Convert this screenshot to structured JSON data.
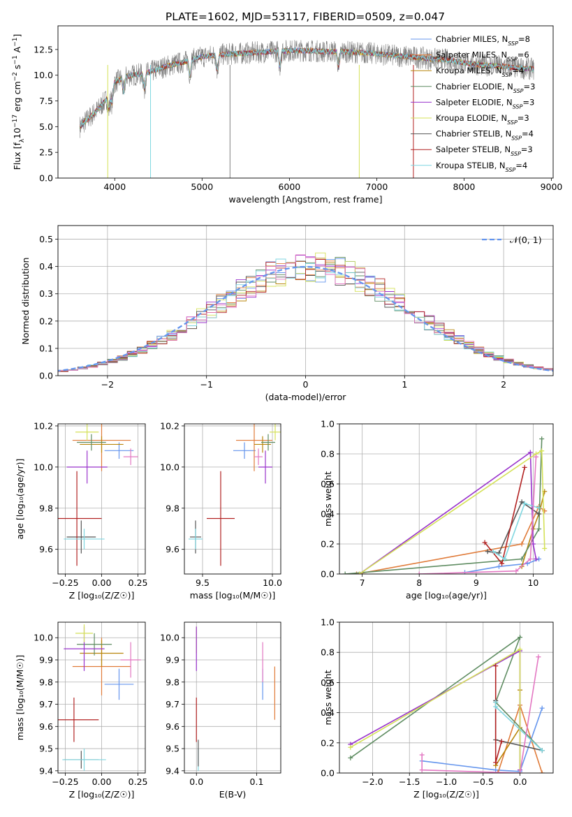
{
  "figure_title": "PLATE=1602, MJD=53117, FIBERID=0509, z=0.047",
  "colors": {
    "Chabrier MILES": "#6495ed",
    "Salpeter MILES": "#e07b39",
    "Kroupa MILES": "#b8860b",
    "Chabrier ELODIE": "#5e8c61",
    "Salpeter ELODIE": "#9932cc",
    "Kroupa ELODIE": "#d4e157",
    "Chabrier STELIB": "#555555",
    "Salpeter STELIB": "#b22222",
    "Kroupa STELIB": "#7fd6e0",
    "pink": "#e377c2",
    "data": "#808080"
  },
  "chart_data": [
    {
      "id": "spectrum",
      "type": "line",
      "xlabel": "wavelength [Angstrom, rest frame]",
      "ylabel": "Flux [f",
      "ylabel_parts": [
        "Flux [f",
        "λ",
        "10",
        "−17",
        " erg cm",
        "−2",
        " s",
        "−1",
        " A",
        "−1",
        "]"
      ],
      "xlim": [
        3350,
        9020
      ],
      "ylim": [
        0,
        14.8
      ],
      "xticks": [
        4000,
        5000,
        6000,
        7000,
        8000,
        9000
      ],
      "yticks": [
        0.0,
        2.5,
        5.0,
        7.5,
        10.0,
        12.5
      ],
      "x_range_data": [
        3600,
        8800
      ],
      "approx_continuum": {
        "x": [
          3600,
          3700,
          3800,
          3900,
          4000,
          4100,
          4200,
          4300,
          4400,
          4600,
          4800,
          5000,
          5200,
          5400,
          5600,
          5800,
          6000,
          6200,
          6400,
          6600,
          6800,
          7000,
          7200,
          7400,
          7600,
          7800,
          8000,
          8200,
          8400,
          8600,
          8800
        ],
        "y": [
          5.0,
          5.8,
          6.6,
          7.6,
          9.3,
          9.8,
          10.0,
          10.1,
          10.3,
          10.9,
          11.3,
          11.8,
          12.0,
          12.1,
          12.2,
          12.3,
          12.4,
          12.4,
          12.3,
          12.3,
          12.2,
          12.1,
          11.9,
          11.8,
          11.6,
          11.5,
          11.2,
          11.0,
          10.9,
          10.7,
          10.6
        ]
      },
      "legend": [
        {
          "name": "Chabrier MILES",
          "nssp": "8"
        },
        {
          "name": "Salpeter MILES",
          "nssp": "6"
        },
        {
          "name": "Kroupa MILES",
          "nssp": "4"
        },
        {
          "name": "Chabrier ELODIE",
          "nssp": "3"
        },
        {
          "name": "Salpeter ELODIE",
          "nssp": "3"
        },
        {
          "name": "Kroupa ELODIE",
          "nssp": "3"
        },
        {
          "name": "Chabrier STELIB",
          "nssp": "4"
        },
        {
          "name": "Salpeter STELIB",
          "nssp": "3"
        },
        {
          "name": "Kroupa STELIB",
          "nssp": "4"
        }
      ],
      "legend_placement": "upper right"
    },
    {
      "id": "residual_hist",
      "type": "histogram",
      "xlabel": "(data-model)/error",
      "ylabel": "Normed distribution",
      "xlim": [
        -2.5,
        2.5
      ],
      "ylim": [
        0,
        0.55
      ],
      "xticks": [
        -2,
        -1,
        0,
        1,
        2
      ],
      "yticks": [
        0.0,
        0.1,
        0.2,
        0.3,
        0.4,
        0.5
      ],
      "grid": true,
      "reference_curve": {
        "name": "N(0, 1)",
        "label": "𝒩(0, 1)",
        "style": "dashed"
      },
      "bin_width": 0.1,
      "legend_placement": "upper right"
    },
    {
      "id": "z_vs_age",
      "type": "errorbar",
      "xlabel": "Z [log₁₀(Z/Z☉)]",
      "ylabel": "age  [log₁₀(age/yr)]",
      "xlim": [
        -0.3,
        0.3
      ],
      "ylim": [
        9.48,
        10.21
      ],
      "xticks": [
        -0.25,
        0.0,
        0.25
      ],
      "yticks": [
        9.6,
        9.8,
        10.0,
        10.2
      ],
      "grid": true,
      "points": [
        {
          "series": "Chabrier MILES",
          "x": 0.12,
          "xerr": 0.1,
          "y": 10.08,
          "yerr": 0.04
        },
        {
          "series": "Salpeter MILES",
          "x": 0.0,
          "xerr": 0.2,
          "y": 10.13,
          "yerr": 0.15
        },
        {
          "series": "Kroupa MILES",
          "x": 0.0,
          "xerr": 0.15,
          "y": 10.11,
          "yerr": 0.04
        },
        {
          "series": "Chabrier ELODIE",
          "x": -0.07,
          "xerr": 0.1,
          "y": 10.12,
          "yerr": 0.04
        },
        {
          "series": "Salpeter ELODIE",
          "x": -0.1,
          "xerr": 0.14,
          "y": 10.0,
          "yerr": 0.08
        },
        {
          "series": "Kroupa ELODIE",
          "x": -0.1,
          "xerr": 0.08,
          "y": 10.17,
          "yerr": 0.04
        },
        {
          "series": "Chabrier STELIB",
          "x": -0.14,
          "xerr": 0.1,
          "y": 9.66,
          "yerr": 0.08
        },
        {
          "series": "Salpeter STELIB",
          "x": -0.17,
          "xerr": 0.17,
          "y": 9.75,
          "yerr": 0.23
        },
        {
          "series": "Kroupa STELIB",
          "x": -0.12,
          "xerr": 0.14,
          "y": 9.65,
          "yerr": 0.05
        },
        {
          "series": "pink",
          "x": 0.2,
          "xerr": 0.05,
          "y": 10.05,
          "yerr": 0.04
        }
      ]
    },
    {
      "id": "mass_vs_age",
      "type": "errorbar",
      "xlabel": "mass [log₁₀(M/M☉)]",
      "ylabel": "",
      "xlim": [
        9.37,
        10.06
      ],
      "ylim": [
        9.48,
        10.21
      ],
      "xticks": [
        9.5,
        10.0
      ],
      "yticks": [
        9.6,
        9.8,
        10.0,
        10.2
      ],
      "grid": true,
      "points": [
        {
          "series": "Chabrier MILES",
          "x": 9.8,
          "xerr": 0.08,
          "y": 10.08,
          "yerr": 0.04
        },
        {
          "series": "Salpeter MILES",
          "x": 9.87,
          "xerr": 0.13,
          "y": 10.13,
          "yerr": 0.15
        },
        {
          "series": "Kroupa MILES",
          "x": 9.93,
          "xerr": 0.06,
          "y": 10.11,
          "yerr": 0.04
        },
        {
          "series": "Chabrier ELODIE",
          "x": 9.97,
          "xerr": 0.05,
          "y": 10.12,
          "yerr": 0.04
        },
        {
          "series": "Salpeter ELODIE",
          "x": 9.95,
          "xerr": 0.05,
          "y": 10.0,
          "yerr": 0.08
        },
        {
          "series": "Kroupa ELODIE",
          "x": 10.02,
          "xerr": 0.04,
          "y": 10.17,
          "yerr": 0.04
        },
        {
          "series": "Chabrier STELIB",
          "x": 9.45,
          "xerr": 0.04,
          "y": 9.66,
          "yerr": 0.08
        },
        {
          "series": "Salpeter STELIB",
          "x": 9.63,
          "xerr": 0.1,
          "y": 9.75,
          "yerr": 0.23
        },
        {
          "series": "Kroupa STELIB",
          "x": 9.45,
          "xerr": 0.05,
          "y": 9.65,
          "yerr": 0.05
        },
        {
          "series": "pink",
          "x": 9.9,
          "xerr": 0.03,
          "y": 10.05,
          "yerr": 0.04
        }
      ]
    },
    {
      "id": "age_vs_weight",
      "type": "line",
      "xlabel": "age  [log₁₀(age/yr)]",
      "ylabel": "mass weight",
      "xlim": [
        6.6,
        10.35
      ],
      "ylim": [
        0,
        1.0
      ],
      "xticks": [
        7,
        8,
        9,
        10
      ],
      "yticks": [
        0.0,
        0.2,
        0.4,
        0.6,
        0.8,
        1.0
      ],
      "grid": true,
      "series": [
        {
          "name": "Chabrier MILES",
          "x": [
            8.8,
            9.4,
            9.9,
            10.1
          ],
          "y": [
            0.01,
            0.05,
            0.07,
            0.1
          ]
        },
        {
          "name": "Salpeter MILES",
          "x": [
            6.9,
            9.8,
            10.1,
            10.2
          ],
          "y": [
            0.0,
            0.2,
            0.45,
            0.42
          ]
        },
        {
          "name": "Kroupa MILES",
          "x": [
            9.8,
            10.0,
            10.1,
            10.2
          ],
          "y": [
            0.05,
            0.3,
            0.4,
            0.55
          ]
        },
        {
          "name": "Chabrier ELODIE",
          "x": [
            6.7,
            9.8,
            10.1,
            10.15
          ],
          "y": [
            0.0,
            0.1,
            0.3,
            0.9
          ]
        },
        {
          "name": "Salpeter ELODIE",
          "x": [
            6.95,
            9.95,
            10.0,
            10.05
          ],
          "y": [
            0.0,
            0.81,
            0.2,
            0.1
          ]
        },
        {
          "name": "Kroupa ELODIE",
          "x": [
            6.95,
            10.05,
            10.15,
            10.2
          ],
          "y": [
            0.0,
            0.8,
            0.82,
            0.17
          ]
        },
        {
          "name": "Chabrier STELIB",
          "x": [
            9.2,
            9.4,
            9.8,
            10.1
          ],
          "y": [
            0.15,
            0.14,
            0.48,
            0.4
          ]
        },
        {
          "name": "Salpeter STELIB",
          "x": [
            9.15,
            9.45,
            9.85
          ],
          "y": [
            0.21,
            0.07,
            0.71
          ]
        },
        {
          "name": "Kroupa STELIB",
          "x": [
            9.3,
            9.5,
            9.85,
            10.1
          ],
          "y": [
            0.15,
            0.1,
            0.47,
            0.44
          ]
        },
        {
          "name": "pink",
          "x": [
            8.0,
            9.7,
            9.95,
            10.05
          ],
          "y": [
            0.0,
            0.02,
            0.1,
            0.78
          ]
        }
      ]
    },
    {
      "id": "z_vs_mass",
      "type": "errorbar",
      "xlabel": "Z [log₁₀(Z/Z☉)]",
      "ylabel": "mass [log₁₀(M/M☉)]",
      "xlim": [
        -0.3,
        0.3
      ],
      "ylim": [
        9.39,
        10.07
      ],
      "xticks": [
        -0.25,
        0.0,
        0.25
      ],
      "yticks": [
        9.4,
        9.5,
        9.6,
        9.7,
        9.8,
        9.9,
        10.0
      ],
      "grid": true,
      "points": [
        {
          "series": "Chabrier MILES",
          "x": 0.12,
          "xerr": 0.1,
          "y": 9.79,
          "yerr": 0.07
        },
        {
          "series": "Salpeter MILES",
          "x": 0.0,
          "xerr": 0.2,
          "y": 9.87,
          "yerr": 0.13
        },
        {
          "series": "Kroupa MILES",
          "x": 0.0,
          "xerr": 0.15,
          "y": 9.93,
          "yerr": 0.06
        },
        {
          "series": "Chabrier ELODIE",
          "x": -0.05,
          "xerr": 0.12,
          "y": 9.97,
          "yerr": 0.05
        },
        {
          "series": "Salpeter ELODIE",
          "x": -0.12,
          "xerr": 0.14,
          "y": 9.95,
          "yerr": 0.1
        },
        {
          "series": "Kroupa ELODIE",
          "x": -0.12,
          "xerr": 0.06,
          "y": 10.02,
          "yerr": 0.04
        },
        {
          "series": "Chabrier STELIB",
          "x": -0.14,
          "xerr": 0.12,
          "y": 9.45,
          "yerr": 0.04
        },
        {
          "series": "Salpeter STELIB",
          "x": -0.19,
          "xerr": 0.17,
          "y": 9.63,
          "yerr": 0.1
        },
        {
          "series": "Kroupa STELIB",
          "x": -0.12,
          "xerr": 0.15,
          "y": 9.45,
          "yerr": 0.05
        },
        {
          "series": "pink",
          "x": 0.2,
          "xerr": 0.07,
          "y": 9.9,
          "yerr": 0.08
        }
      ]
    },
    {
      "id": "ebv_vs_mass",
      "type": "errorbar",
      "xlabel": "E(B-V)",
      "ylabel": "",
      "xlim": [
        -0.02,
        0.14
      ],
      "ylim": [
        9.39,
        10.07
      ],
      "xticks": [
        0.0,
        0.1
      ],
      "yticks": [
        9.4,
        9.5,
        9.6,
        9.7,
        9.8,
        9.9,
        10.0
      ],
      "grid": true,
      "points": [
        {
          "series": "Chabrier MILES",
          "x": 0.11,
          "xerr": 0,
          "y": 9.79,
          "yerr": 0.07
        },
        {
          "series": "Salpeter MILES",
          "x": 0.13,
          "xerr": 0,
          "y": 9.75,
          "yerr": 0.12
        },
        {
          "series": "Kroupa ELODIE",
          "x": 0.0,
          "xerr": 0,
          "y": 9.99,
          "yerr": 0.06
        },
        {
          "series": "Salpeter ELODIE",
          "x": 0.0,
          "xerr": 0,
          "y": 9.95,
          "yerr": 0.1
        },
        {
          "series": "Salpeter STELIB",
          "x": 0.0,
          "xerr": 0,
          "y": 9.63,
          "yerr": 0.1
        },
        {
          "series": "Kroupa STELIB",
          "x": 0.003,
          "xerr": 0,
          "y": 9.45,
          "yerr": 0.05
        },
        {
          "series": "Chabrier STELIB",
          "x": 0.003,
          "xerr": 0,
          "y": 9.48,
          "yerr": 0.06
        },
        {
          "series": "pink",
          "x": 0.11,
          "xerr": 0,
          "y": 9.89,
          "yerr": 0.09
        }
      ]
    },
    {
      "id": "z_vs_weight",
      "type": "line",
      "xlabel": "Z [log₁₀(Z/Z☉)]",
      "ylabel": "mass weight",
      "xlim": [
        -2.45,
        0.45
      ],
      "ylim": [
        0,
        1.0
      ],
      "xticks": [
        -2.0,
        -1.5,
        -1.0,
        -0.5,
        0.0
      ],
      "yticks": [
        0.0,
        0.2,
        0.4,
        0.6,
        0.8,
        1.0
      ],
      "grid": true,
      "series": [
        {
          "name": "Chabrier MILES",
          "x": [
            -1.33,
            -0.33,
            0.0,
            0.3
          ],
          "y": [
            0.08,
            0.02,
            0.01,
            0.43
          ]
        },
        {
          "name": "Salpeter MILES",
          "x": [
            -0.3,
            0.0,
            0.3
          ],
          "y": [
            0.0,
            0.45,
            0.0
          ]
        },
        {
          "name": "Kroupa MILES",
          "x": [
            -0.33,
            0.0,
            0.0
          ],
          "y": [
            0.05,
            0.3,
            0.55
          ]
        },
        {
          "name": "Chabrier ELODIE",
          "x": [
            -2.3,
            0.0,
            -0.33,
            0.3
          ],
          "y": [
            0.1,
            0.9,
            0.47,
            0.15
          ]
        },
        {
          "name": "Salpeter ELODIE",
          "x": [
            -2.3,
            0.0,
            0.0
          ],
          "y": [
            0.19,
            0.81,
            0.02
          ]
        },
        {
          "name": "Kroupa ELODIE",
          "x": [
            -2.3,
            0.0,
            0.0
          ],
          "y": [
            0.17,
            0.82,
            0.0
          ]
        },
        {
          "name": "Chabrier STELIB",
          "x": [
            -0.33,
            -0.33,
            0.3
          ],
          "y": [
            0.48,
            0.22,
            0.15
          ]
        },
        {
          "name": "Salpeter STELIB",
          "x": [
            -0.33,
            -0.33,
            -0.25
          ],
          "y": [
            0.71,
            0.07,
            0.21
          ]
        },
        {
          "name": "Kroupa STELIB",
          "x": [
            -0.33,
            -0.33,
            0.3
          ],
          "y": [
            0.47,
            0.44,
            0.15
          ]
        },
        {
          "name": "pink",
          "x": [
            -1.33,
            -1.33,
            0.0,
            0.25
          ],
          "y": [
            0.12,
            0.02,
            0.0,
            0.77
          ]
        }
      ]
    }
  ]
}
